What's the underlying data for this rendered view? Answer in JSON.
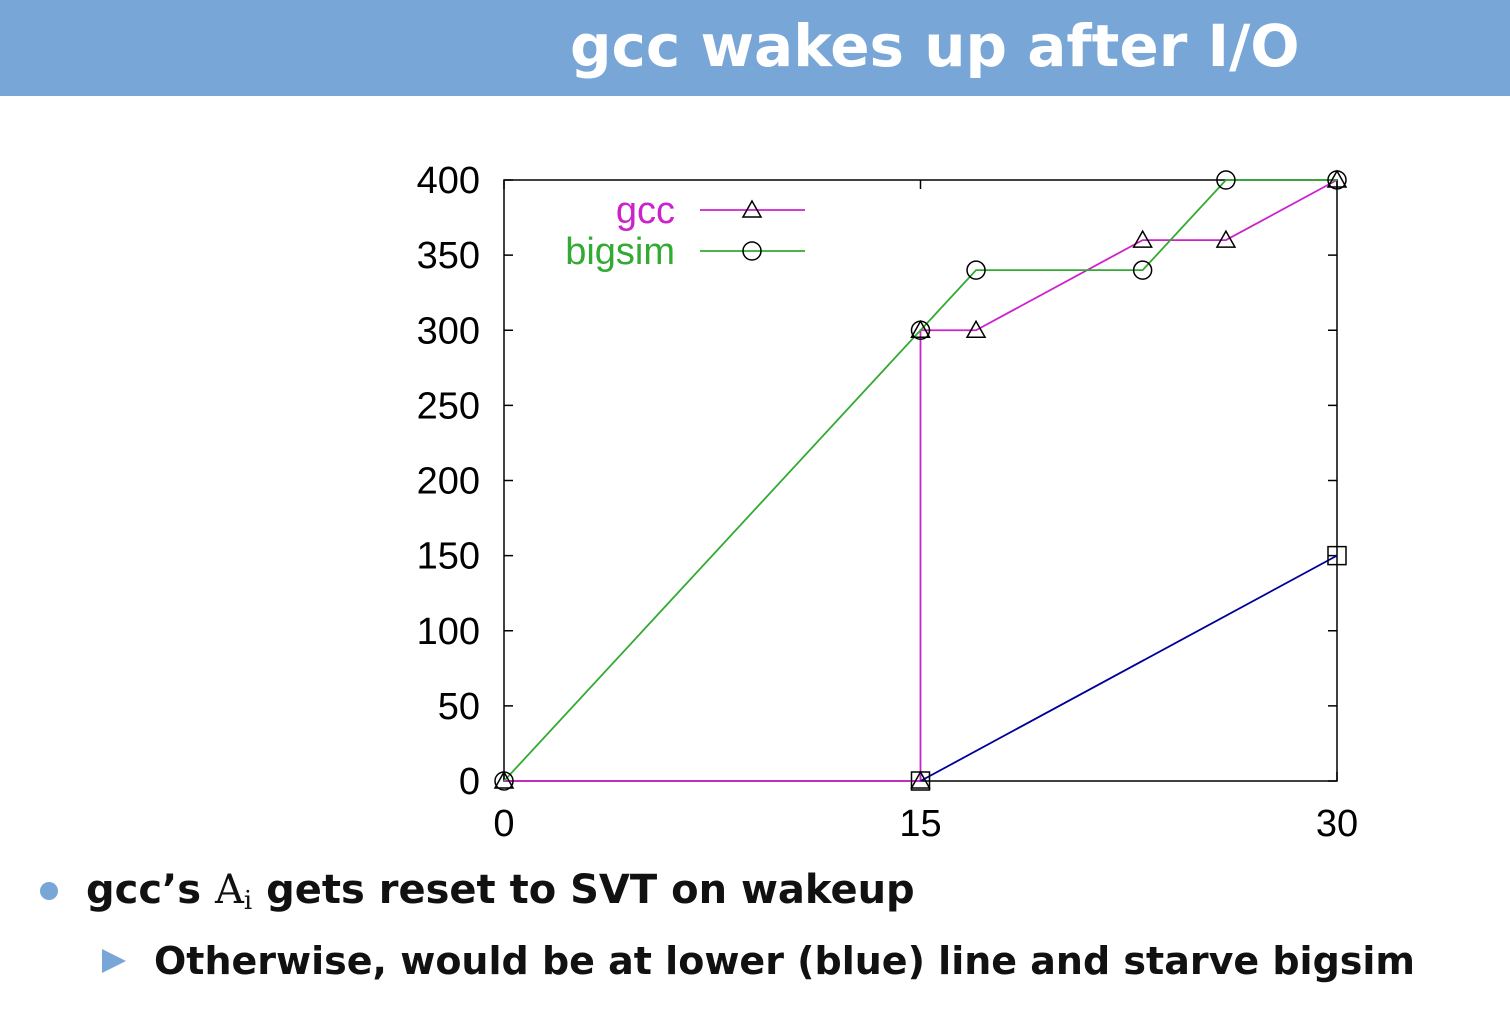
{
  "slide": {
    "title": "gcc wakes up after I/O"
  },
  "bullets": {
    "main_prefix": "gcc’s ",
    "main_math": "A",
    "main_math_sub": "i",
    "main_suffix": " gets reset to SVT on wakeup",
    "sub": "Otherwise, would be at lower (blue) line and starve bigsim"
  },
  "colors": {
    "title_bar": "#78a6d6",
    "gcc": "#cc22cc",
    "bigsim": "#33aa33",
    "blue": "#000099",
    "bullet": "#78a6d6"
  },
  "chart_data": {
    "type": "line",
    "title": "",
    "xlabel": "",
    "ylabel": "",
    "xlim": [
      0,
      30
    ],
    "ylim": [
      0,
      400
    ],
    "xticks": [
      0,
      15,
      30
    ],
    "yticks": [
      0,
      50,
      100,
      150,
      200,
      250,
      300,
      350,
      400
    ],
    "legend": "top-left",
    "grid": false,
    "series": [
      {
        "name": "gcc",
        "color": "#cc22cc",
        "marker": "triangle",
        "points": [
          [
            0,
            0
          ],
          [
            15,
            0
          ],
          [
            15,
            300
          ],
          [
            17,
            300
          ],
          [
            23,
            360
          ],
          [
            26,
            360
          ],
          [
            30,
            400
          ]
        ]
      },
      {
        "name": "bigsim",
        "color": "#33aa33",
        "marker": "circle",
        "points": [
          [
            0,
            0
          ],
          [
            15,
            300
          ],
          [
            17,
            340
          ],
          [
            23,
            340
          ],
          [
            26,
            400
          ],
          [
            30,
            400
          ]
        ]
      },
      {
        "color": "#000099",
        "marker": "square",
        "points": [
          [
            15,
            0
          ],
          [
            30,
            150
          ]
        ]
      }
    ]
  }
}
